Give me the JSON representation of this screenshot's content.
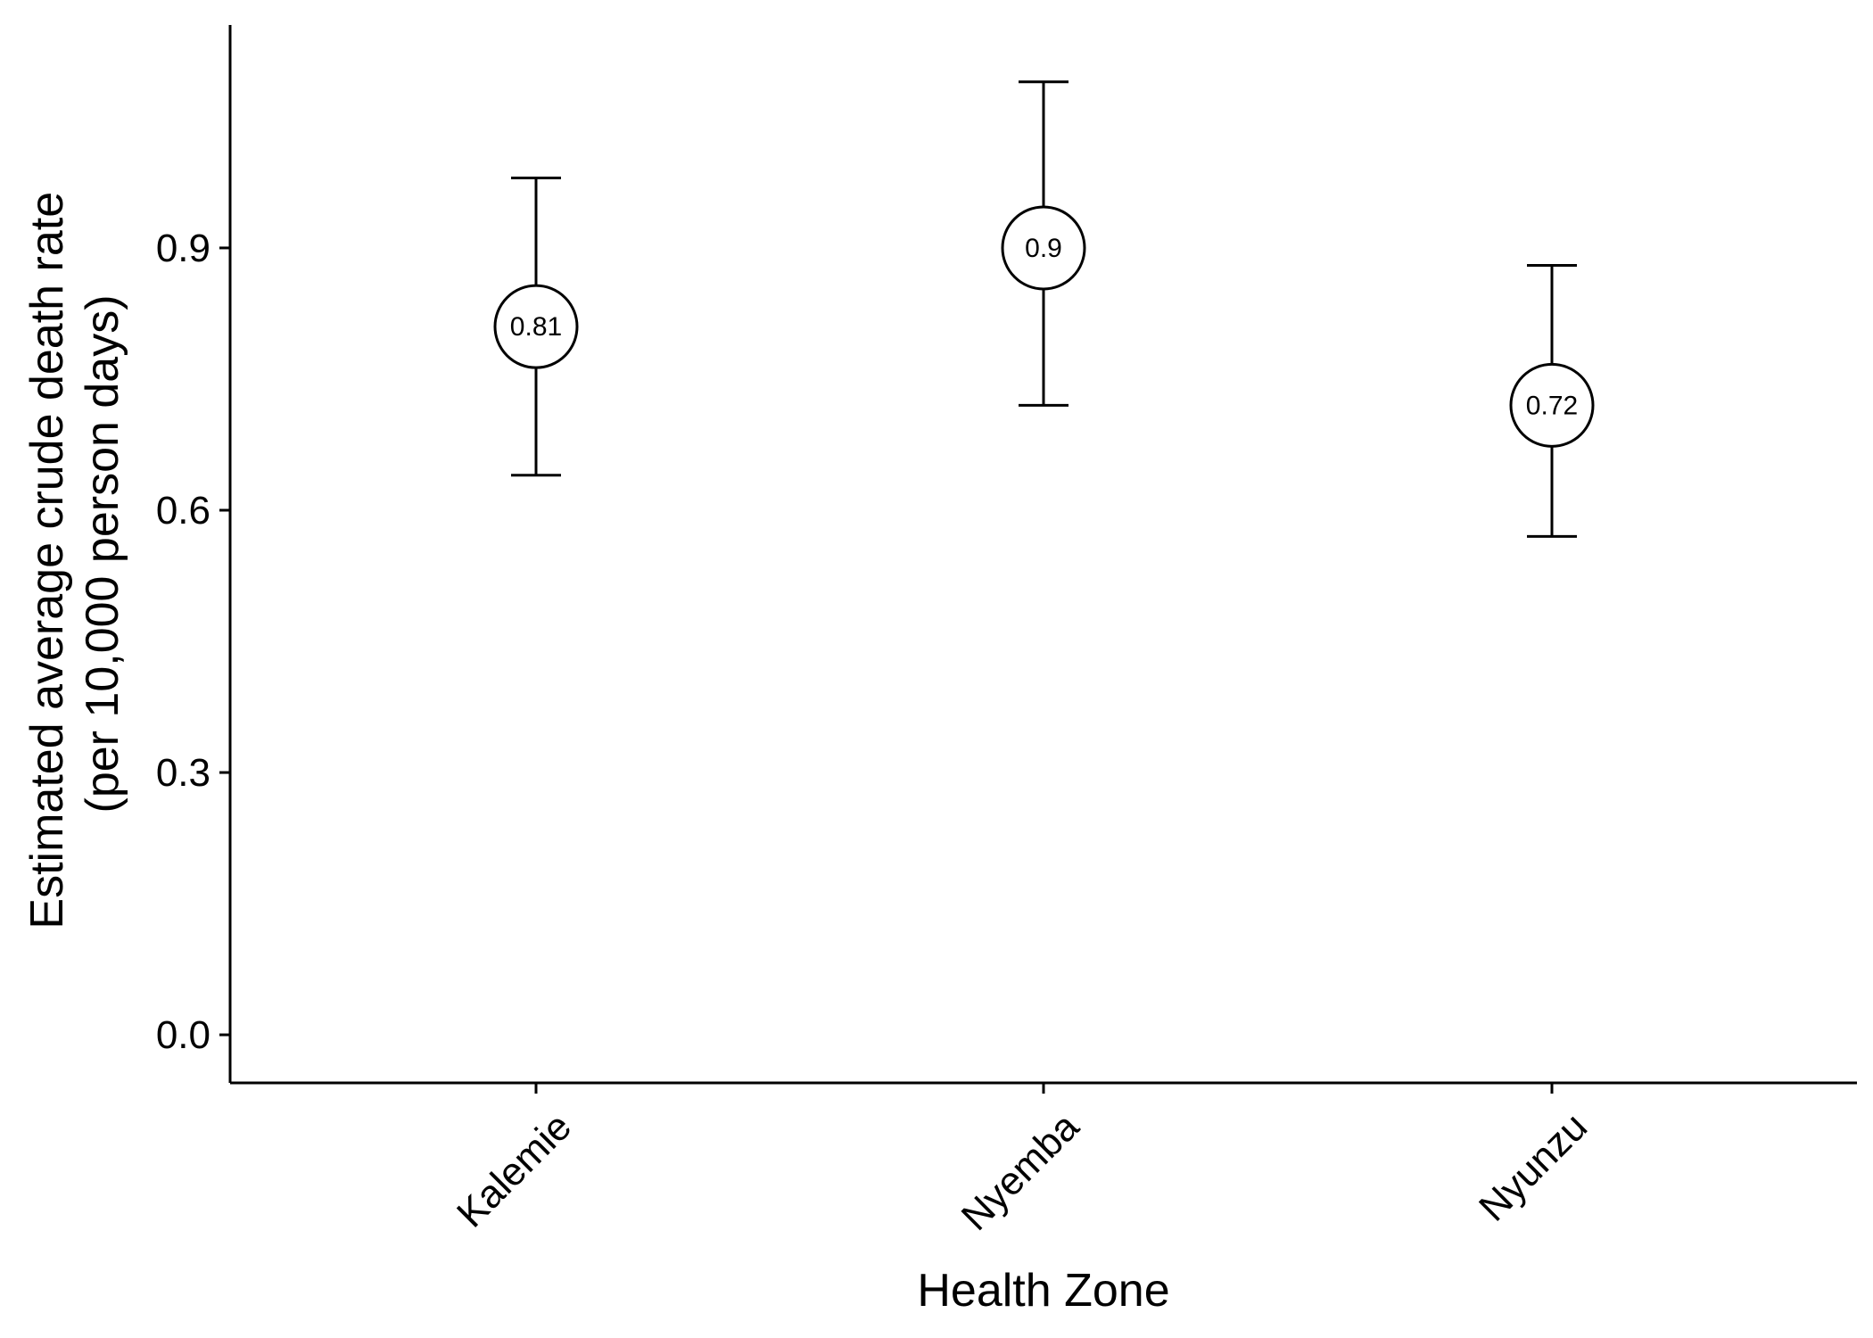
{
  "chart_data": {
    "type": "scatter",
    "title": "",
    "xlabel": "Health Zone",
    "ylabel_lines": [
      "Estimated average crude death rate",
      "(per 10,000 person days)"
    ],
    "categories": [
      "Kalemie",
      "Nyemba",
      "Nyunzu"
    ],
    "series": [
      {
        "values": [
          0.81,
          0.9,
          0.72
        ],
        "lower": [
          0.64,
          0.72,
          0.57
        ],
        "upper": [
          0.98,
          1.09,
          0.88
        ],
        "point_labels": [
          "0.81",
          "0.9",
          "0.72"
        ]
      }
    ],
    "yticks": [
      0.0,
      0.3,
      0.6,
      0.9
    ],
    "ytick_labels": [
      "0.0",
      "0.3",
      "0.6",
      "0.9"
    ],
    "ylim": [
      -0.055,
      1.155
    ],
    "grid": false,
    "legend": "none",
    "colors": {
      "point_fill": "#ffffff",
      "stroke": "#000000",
      "text": "#000000"
    }
  }
}
